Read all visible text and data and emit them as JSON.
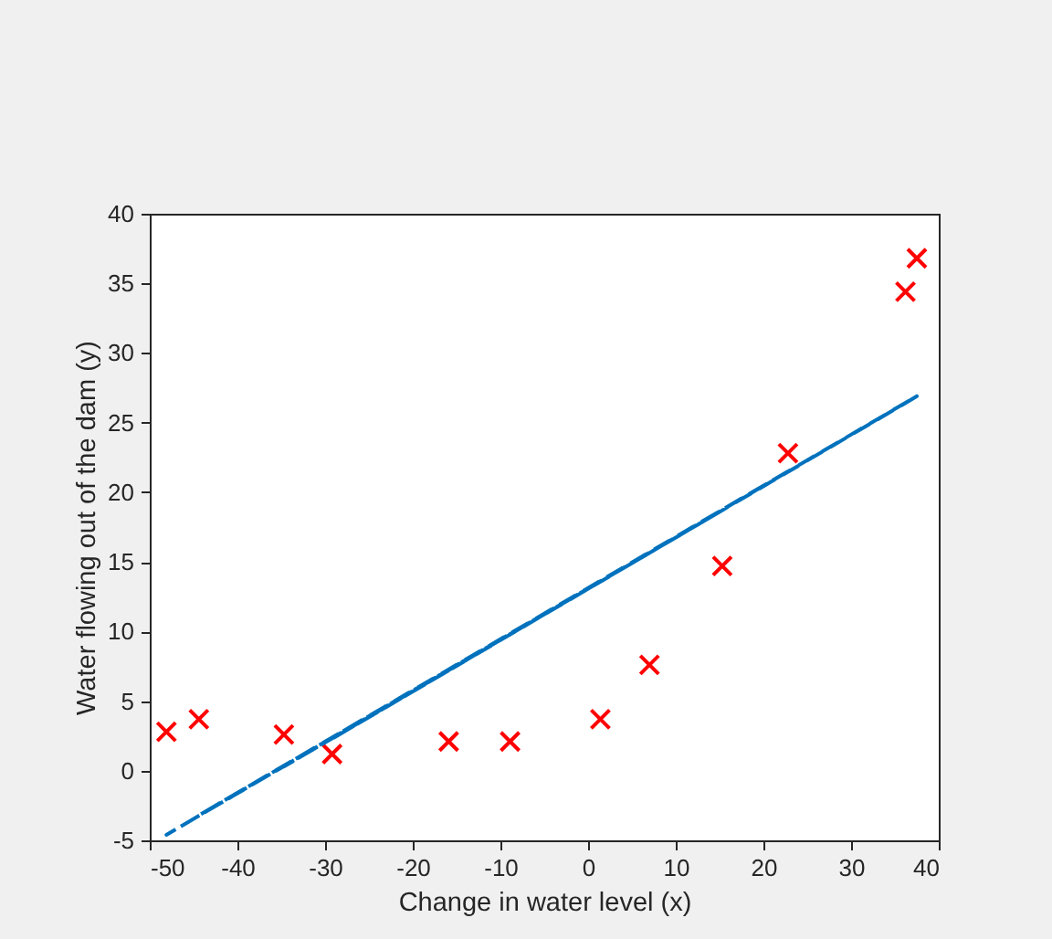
{
  "chart_data": {
    "type": "scatter",
    "xlabel": "Change in water level (x)",
    "ylabel": "Water flowing out of the dam (y)",
    "xlim": [
      -50,
      40
    ],
    "xticks": [
      -50,
      -40,
      -30,
      -20,
      -10,
      0,
      10,
      20,
      30,
      40
    ],
    "ylim": [
      -5,
      40
    ],
    "yticks": [
      -5,
      0,
      5,
      10,
      15,
      20,
      25,
      30,
      35,
      40
    ],
    "marker": "cross",
    "line_style": "dashed",
    "series": [
      {
        "color": "#ff0000",
        "x": [
          -15.9,
          -29.2,
          36.2,
          37.5,
          -48.1,
          -8.9,
          15.3,
          -34.7,
          1.4,
          -44.4,
          7.0,
          22.8
        ],
        "values": [
          2.1,
          1.2,
          34.4,
          36.8,
          2.8,
          2.1,
          14.7,
          2.6,
          3.7,
          3.7,
          7.6,
          22.8
        ]
      },
      {
        "type": "line",
        "color": "#0072bd",
        "marker": "none",
        "x": [
          -15.9,
          -29.2,
          36.2,
          37.5,
          -48.1,
          -8.9,
          15.3,
          -34.7,
          1.4,
          -44.4,
          7.0,
          22.8
        ],
        "values": [
          7.2,
          2.3,
          26.4,
          26.9,
          -4.6,
          9.8,
          18.7,
          0.3,
          13.6,
          -3.2,
          15.7,
          21.5
        ]
      }
    ]
  }
}
